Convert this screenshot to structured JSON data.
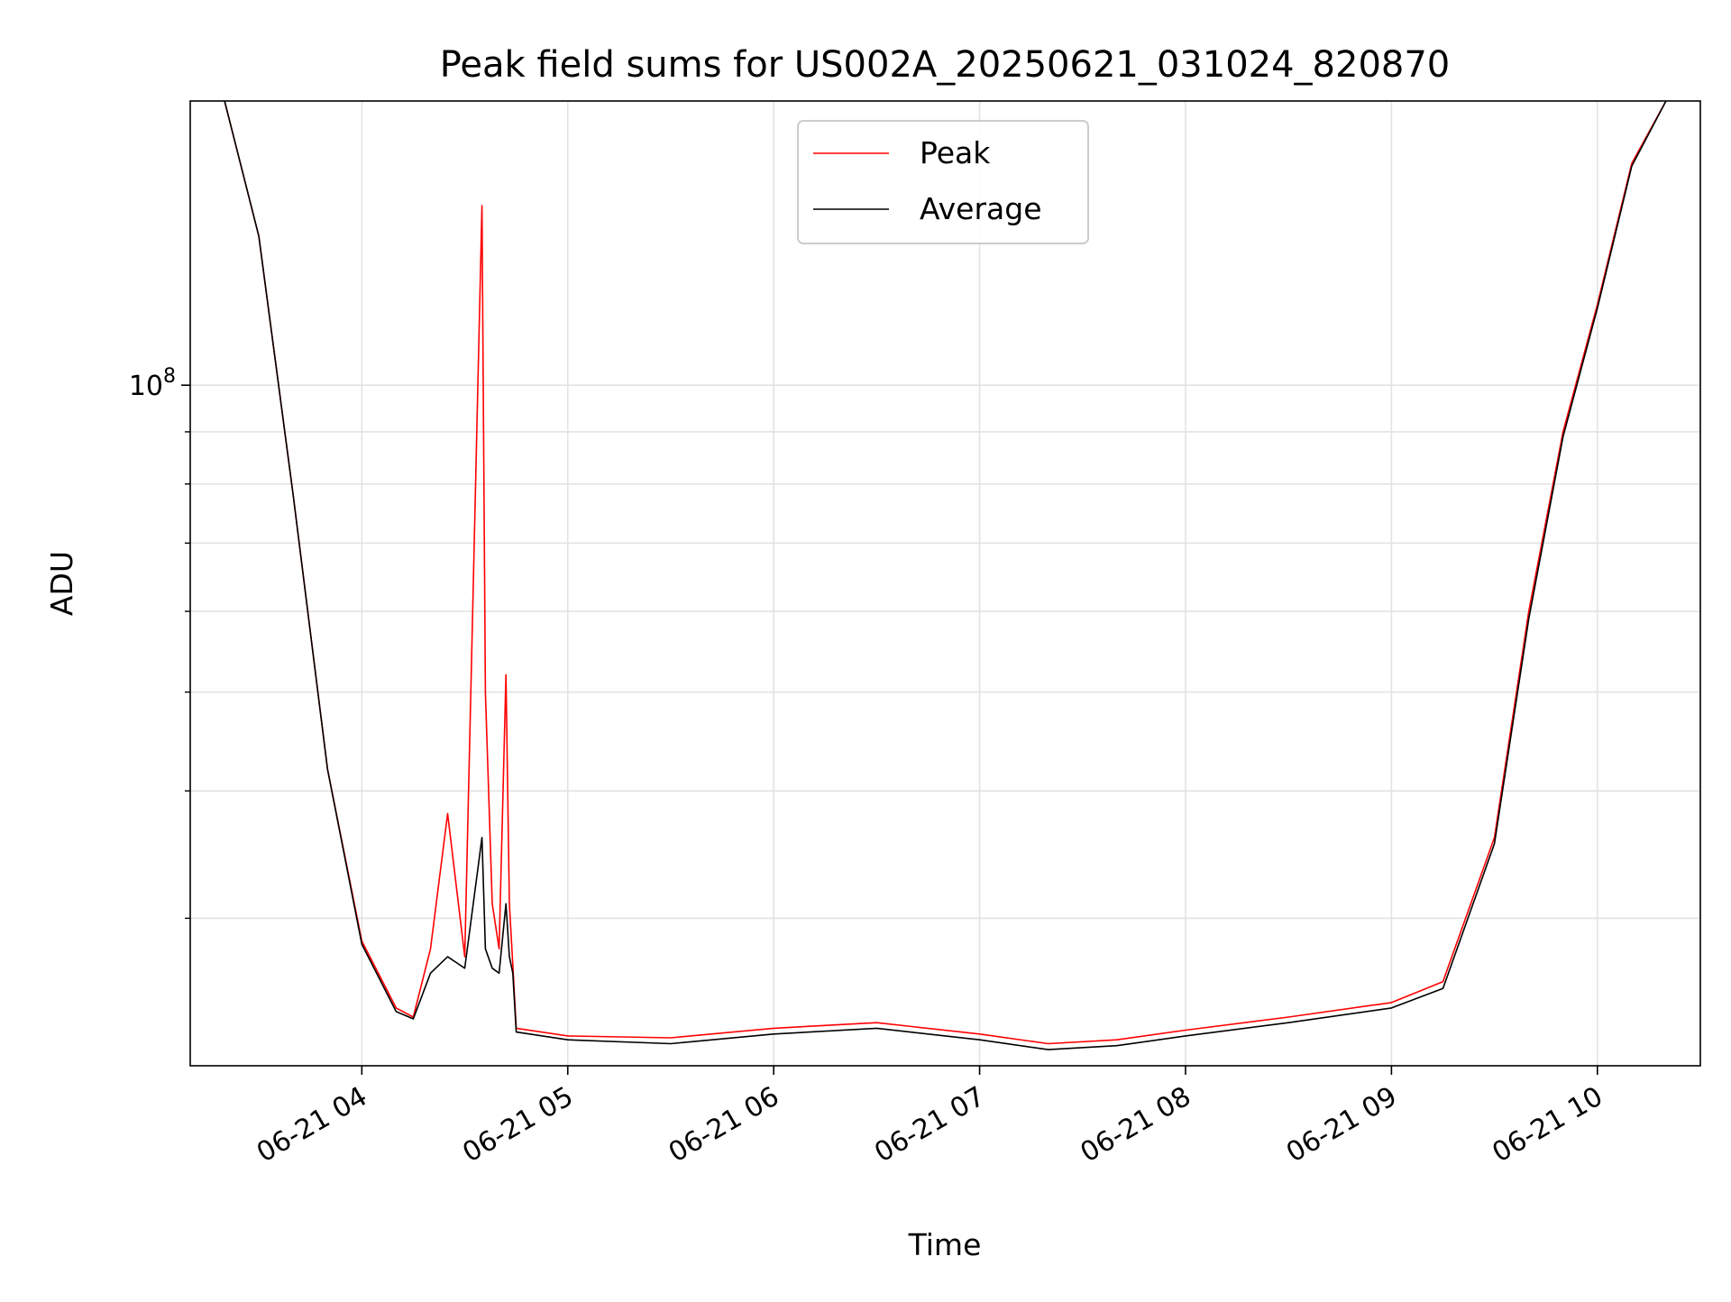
{
  "chart_data": {
    "type": "line",
    "title": "Peak field sums for US002A_20250621_031024_820870",
    "xlabel": "Time",
    "ylabel": "ADU",
    "y_scale": "log",
    "ylim": [
      21500000,
      190000000
    ],
    "xlim": [
      "2025-06-21 03:10",
      "2025-06-21 10:30"
    ],
    "x_ticks": [
      "2025-06-21 04:00",
      "2025-06-21 05:00",
      "2025-06-21 06:00",
      "2025-06-21 07:00",
      "2025-06-21 08:00",
      "2025-06-21 09:00",
      "2025-06-21 10:00"
    ],
    "x_tick_labels": [
      "06-21 04",
      "06-21 05",
      "06-21 06",
      "06-21 07",
      "06-21 08",
      "06-21 09",
      "06-21 10"
    ],
    "y_major_ticks": [
      100000000
    ],
    "y_major_tick_labels": [
      "10^8"
    ],
    "y_minor_ticks": [
      30000000,
      40000000,
      50000000,
      60000000,
      70000000,
      80000000,
      90000000,
      200000000
    ],
    "grid": true,
    "legend_position": "upper center",
    "series": [
      {
        "name": "Peak",
        "color": "#ff0000",
        "x": [
          "2025-06-21 03:20",
          "2025-06-21 03:30",
          "2025-06-21 03:40",
          "2025-06-21 03:50",
          "2025-06-21 04:00",
          "2025-06-21 04:10",
          "2025-06-21 04:15",
          "2025-06-21 04:20",
          "2025-06-21 04:25",
          "2025-06-21 04:30",
          "2025-06-21 04:35",
          "2025-06-21 04:36",
          "2025-06-21 04:38",
          "2025-06-21 04:40",
          "2025-06-21 04:42",
          "2025-06-21 04:43",
          "2025-06-21 04:44",
          "2025-06-21 04:45",
          "2025-06-21 05:00",
          "2025-06-21 05:30",
          "2025-06-21 06:00",
          "2025-06-21 06:30",
          "2025-06-21 07:00",
          "2025-06-21 07:20",
          "2025-06-21 07:40",
          "2025-06-21 08:00",
          "2025-06-21 08:30",
          "2025-06-21 09:00",
          "2025-06-21 09:15",
          "2025-06-21 09:30",
          "2025-06-21 09:40",
          "2025-06-21 09:50",
          "2025-06-21 10:00",
          "2025-06-21 10:10",
          "2025-06-21 10:20"
        ],
        "values": [
          190000000,
          140000000,
          78000000,
          42000000,
          28500000,
          24500000,
          24000000,
          28000000,
          38000000,
          27500000,
          150000000,
          50000000,
          31000000,
          28000000,
          52000000,
          31000000,
          27000000,
          23400000,
          23000000,
          22900000,
          23400000,
          23700000,
          23100000,
          22600000,
          22800000,
          23300000,
          24000000,
          24800000,
          26000000,
          36000000,
          60000000,
          90000000,
          120000000,
          165000000,
          190000000
        ]
      },
      {
        "name": "Average",
        "color": "#000000",
        "x": [
          "2025-06-21 03:20",
          "2025-06-21 03:30",
          "2025-06-21 03:40",
          "2025-06-21 03:50",
          "2025-06-21 04:00",
          "2025-06-21 04:10",
          "2025-06-21 04:15",
          "2025-06-21 04:20",
          "2025-06-21 04:25",
          "2025-06-21 04:30",
          "2025-06-21 04:35",
          "2025-06-21 04:36",
          "2025-06-21 04:38",
          "2025-06-21 04:40",
          "2025-06-21 04:42",
          "2025-06-21 04:43",
          "2025-06-21 04:44",
          "2025-06-21 04:45",
          "2025-06-21 05:00",
          "2025-06-21 05:30",
          "2025-06-21 06:00",
          "2025-06-21 06:30",
          "2025-06-21 07:00",
          "2025-06-21 07:20",
          "2025-06-21 07:40",
          "2025-06-21 08:00",
          "2025-06-21 08:30",
          "2025-06-21 09:00",
          "2025-06-21 09:15",
          "2025-06-21 09:30",
          "2025-06-21 09:40",
          "2025-06-21 09:50",
          "2025-06-21 10:00",
          "2025-06-21 10:10",
          "2025-06-21 10:20"
        ],
        "values": [
          190000000,
          140000000,
          78000000,
          42000000,
          28300000,
          24300000,
          23900000,
          26500000,
          27500000,
          26800000,
          36000000,
          28000000,
          26800000,
          26500000,
          31000000,
          27500000,
          26500000,
          23200000,
          22800000,
          22600000,
          23100000,
          23400000,
          22800000,
          22300000,
          22500000,
          23000000,
          23700000,
          24500000,
          25600000,
          35500000,
          59000000,
          89000000,
          119000000,
          164000000,
          190000000
        ]
      }
    ]
  }
}
